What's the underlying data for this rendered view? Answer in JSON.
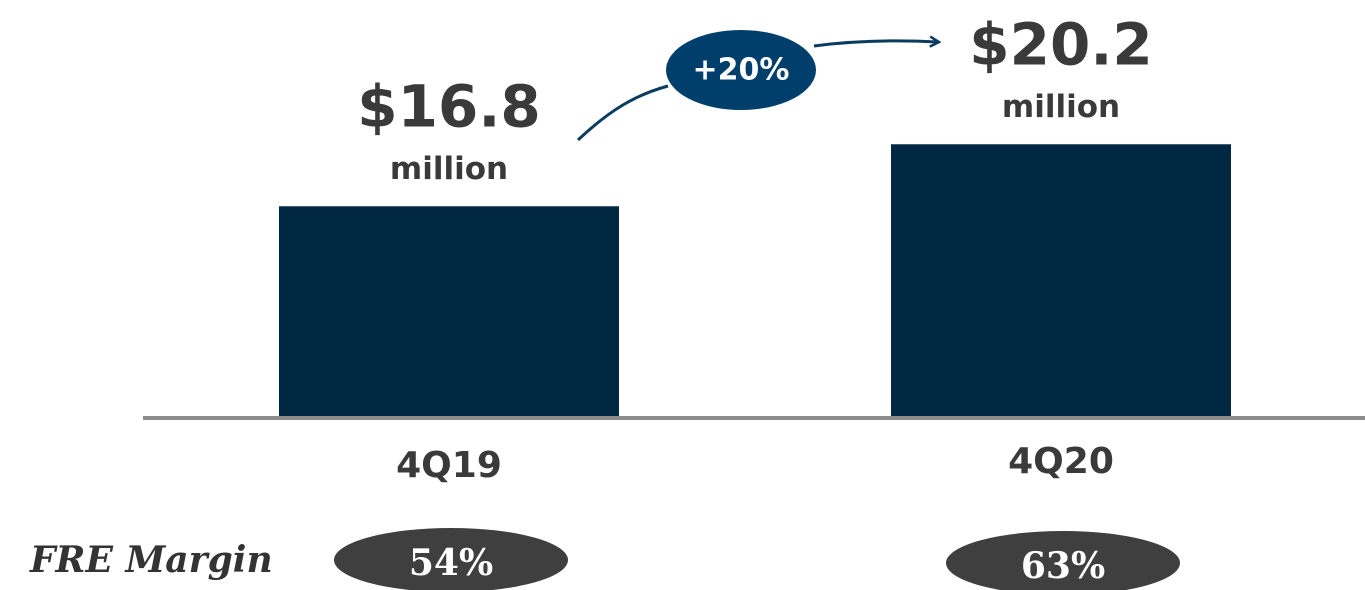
{
  "chart_data": {
    "type": "bar",
    "categories": [
      "4Q19",
      "4Q20"
    ],
    "values": [
      16.8,
      20.2
    ],
    "value_labels": [
      "$16.8",
      "$20.2"
    ],
    "unit_label": "million",
    "color": "#012842",
    "ylim": [
      5.3,
      28
    ],
    "annotation": "+20%",
    "margin": {
      "label": "FRE Margin",
      "values": [
        54,
        63
      ],
      "value_labels": [
        "54%",
        "63%"
      ]
    }
  }
}
